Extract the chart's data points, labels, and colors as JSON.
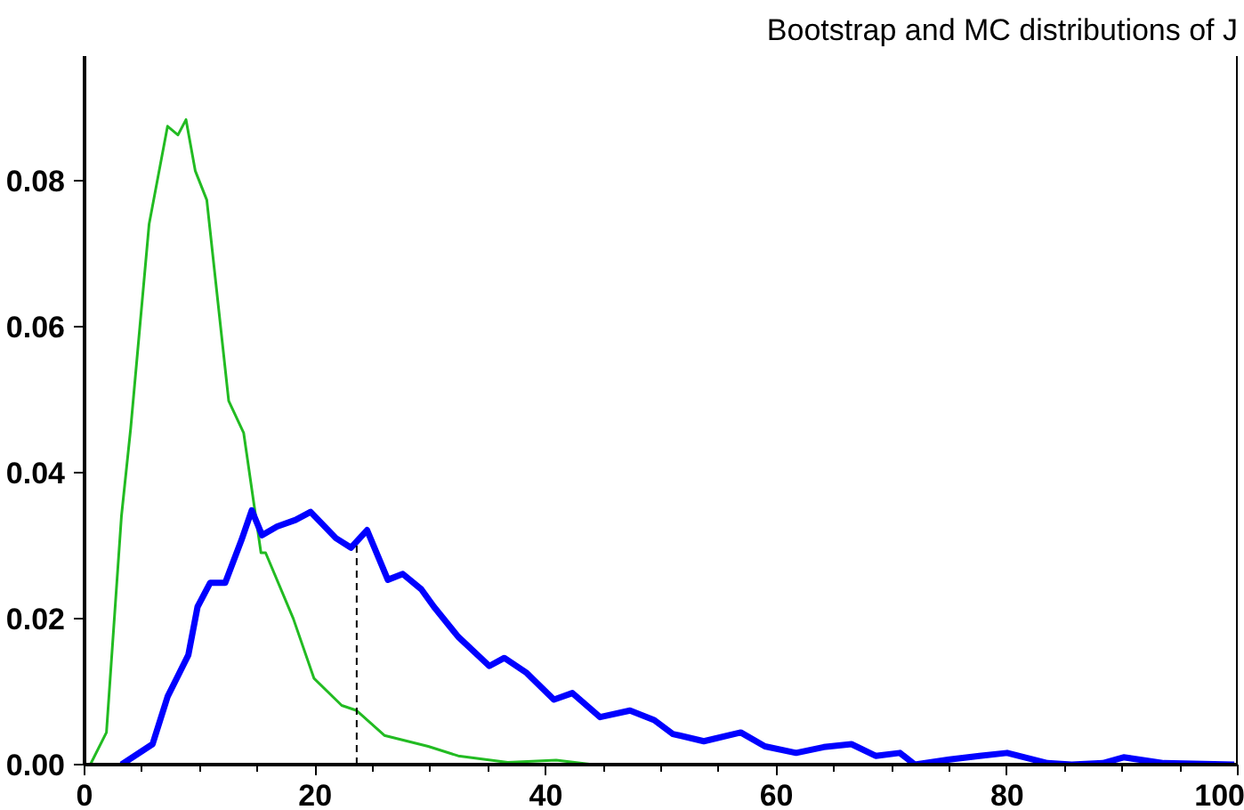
{
  "chart_data": {
    "type": "line",
    "title": "Bootstrap and MC distributions of J",
    "xlim": [
      0,
      100
    ],
    "ylim": [
      0,
      0.097
    ],
    "xticks": [
      0,
      20,
      40,
      60,
      80,
      100
    ],
    "yticks": [
      {
        "value": 0,
        "label": "0.00"
      },
      {
        "value": 0.02,
        "label": "0.02"
      },
      {
        "value": 0.04,
        "label": "0.04"
      },
      {
        "value": 0.06,
        "label": "0.06"
      },
      {
        "value": 0.08,
        "label": "0.08"
      }
    ],
    "grid": false,
    "marker": "none",
    "line_style": "solid",
    "ref_lines": [
      {
        "axis": "x",
        "value": 23.6,
        "color": "#000000",
        "line_style": "dashed"
      }
    ],
    "series": [
      {
        "color": "#22bb22",
        "x": [
          0.5,
          1.9,
          3.2,
          4.0,
          5.6,
          7.2,
          8.1,
          8.8,
          9.6,
          10.6,
          12.5,
          13.8,
          15.3,
          15.7,
          18.1,
          19.9,
          22.3,
          23.6,
          26.0,
          29.8,
          32.4,
          36.7,
          40.9,
          44.1,
          55,
          70
        ],
        "values": [
          0,
          0.0044,
          0.034,
          0.046,
          0.074,
          0.0874,
          0.0862,
          0.0883,
          0.0813,
          0.0773,
          0.0498,
          0.0454,
          0.029,
          0.029,
          0.02,
          0.0118,
          0.0081,
          0.0074,
          0.004,
          0.0025,
          0.0012,
          0.0003,
          0.0006,
          0,
          0,
          0
        ]
      },
      {
        "color": "#0000ff",
        "x": [
          3.2,
          5.9,
          7.2,
          9.0,
          9.8,
          10.9,
          12.2,
          13.6,
          14.5,
          15.4,
          16.7,
          18.3,
          19.6,
          21.8,
          23.1,
          24.5,
          26.3,
          27.6,
          29.2,
          30.3,
          32.4,
          35.1,
          36.4,
          38.3,
          40.7,
          42.3,
          44.7,
          47.3,
          49.4,
          51.0,
          53.7,
          56.9,
          59.0,
          61.7,
          64.1,
          66.5,
          68.6,
          70.7,
          72.0,
          75.0,
          77.6,
          80.0,
          83.5,
          85.6,
          88.3,
          90.1,
          93.6,
          99.7
        ],
        "values": [
          0,
          0.0028,
          0.0093,
          0.015,
          0.0216,
          0.0249,
          0.0249,
          0.0307,
          0.0348,
          0.0314,
          0.0326,
          0.0335,
          0.0346,
          0.031,
          0.0297,
          0.0321,
          0.0253,
          0.0261,
          0.024,
          0.0216,
          0.0175,
          0.0135,
          0.0146,
          0.0126,
          0.0089,
          0.0098,
          0.0065,
          0.0074,
          0.0061,
          0.0042,
          0.0032,
          0.0044,
          0.0025,
          0.0016,
          0.0024,
          0.0028,
          0.0012,
          0.0016,
          0,
          0.0007,
          0.0012,
          0.0016,
          0.0002,
          0,
          0.0002,
          0.001,
          0.0002,
          0
        ]
      }
    ]
  }
}
